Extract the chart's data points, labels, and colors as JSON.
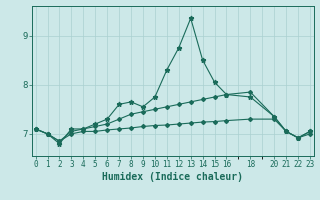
{
  "xlabel": "Humidex (Indice chaleur)",
  "bg_color": "#cce8e8",
  "line_color": "#1a6b5a",
  "grid_color": "#aad0d0",
  "x_ticks": [
    0,
    1,
    2,
    3,
    4,
    5,
    6,
    7,
    8,
    9,
    10,
    11,
    12,
    13,
    14,
    15,
    16,
    18,
    20,
    21,
    22,
    23
  ],
  "xlim": [
    -0.3,
    23.3
  ],
  "ylim": [
    6.55,
    9.6
  ],
  "yticks": [
    7,
    8,
    9
  ],
  "series": {
    "max": {
      "x": [
        0,
        1,
        2,
        3,
        4,
        5,
        6,
        7,
        8,
        9,
        10,
        11,
        12,
        13,
        14,
        15,
        16,
        18,
        20,
        21,
        22,
        23
      ],
      "y": [
        7.1,
        7.0,
        6.8,
        7.1,
        7.1,
        7.2,
        7.3,
        7.6,
        7.65,
        7.55,
        7.75,
        8.3,
        8.75,
        9.35,
        8.5,
        8.05,
        7.8,
        7.75,
        7.35,
        7.05,
        6.92,
        7.05
      ]
    },
    "mean": {
      "x": [
        0,
        1,
        2,
        3,
        4,
        5,
        6,
        7,
        8,
        9,
        10,
        11,
        12,
        13,
        14,
        15,
        16,
        18,
        20,
        21,
        22,
        23
      ],
      "y": [
        7.1,
        7.0,
        6.85,
        7.05,
        7.1,
        7.15,
        7.2,
        7.3,
        7.4,
        7.45,
        7.5,
        7.55,
        7.6,
        7.65,
        7.7,
        7.75,
        7.8,
        7.85,
        7.35,
        7.05,
        6.92,
        7.05
      ]
    },
    "min": {
      "x": [
        0,
        1,
        2,
        3,
        4,
        5,
        6,
        7,
        8,
        9,
        10,
        11,
        12,
        13,
        14,
        15,
        16,
        18,
        20,
        21,
        22,
        23
      ],
      "y": [
        7.1,
        7.0,
        6.85,
        7.0,
        7.05,
        7.05,
        7.08,
        7.1,
        7.12,
        7.15,
        7.17,
        7.18,
        7.2,
        7.22,
        7.24,
        7.25,
        7.27,
        7.3,
        7.3,
        7.05,
        6.92,
        7.0
      ]
    }
  },
  "tick_fontsize": 5.5,
  "xlabel_fontsize": 7.0
}
